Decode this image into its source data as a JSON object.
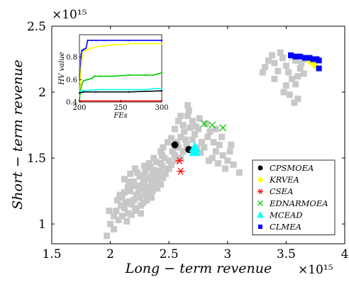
{
  "chart_data": {
    "type": "scatter",
    "xlabel": "Long − term revenue",
    "ylabel": "Short − term revenue",
    "x_exponent": "×10¹⁵",
    "y_exponent": "×10¹⁵",
    "xlim": [
      1.5,
      4
    ],
    "ylim": [
      0.85,
      2.5
    ],
    "xticks": [
      "1.5",
      "2",
      "2.5",
      "3",
      "3.5",
      "4"
    ],
    "yticks": [
      "1",
      "1.5",
      "2",
      "2.5"
    ],
    "legend_position": "bottom-right",
    "background_series": {
      "color": "#c8c8c8",
      "marker": "square",
      "points": [
        [
          1.97,
          0.91
        ],
        [
          2.0,
          1.0
        ],
        [
          2.03,
          0.96
        ],
        [
          2.07,
          1.03
        ],
        [
          2.1,
          1.06
        ],
        [
          2.05,
          1.1
        ],
        [
          2.12,
          1.12
        ],
        [
          2.15,
          1.08
        ],
        [
          2.18,
          1.15
        ],
        [
          2.2,
          1.18
        ],
        [
          2.1,
          1.2
        ],
        [
          2.13,
          1.16
        ],
        [
          2.22,
          1.22
        ],
        [
          2.25,
          1.2
        ],
        [
          2.27,
          1.26
        ],
        [
          2.3,
          1.22
        ],
        [
          2.17,
          1.25
        ],
        [
          2.24,
          1.29
        ],
        [
          2.28,
          1.31
        ],
        [
          2.33,
          1.28
        ],
        [
          2.35,
          1.33
        ],
        [
          2.32,
          1.35
        ],
        [
          2.38,
          1.3
        ],
        [
          2.4,
          1.36
        ],
        [
          2.36,
          1.38
        ],
        [
          2.42,
          1.4
        ],
        [
          2.45,
          1.35
        ],
        [
          2.48,
          1.42
        ],
        [
          2.3,
          1.4
        ],
        [
          2.27,
          1.37
        ],
        [
          2.2,
          1.32
        ],
        [
          2.15,
          1.28
        ],
        [
          2.25,
          1.36
        ],
        [
          2.34,
          1.43
        ],
        [
          2.43,
          1.46
        ],
        [
          2.5,
          1.48
        ],
        [
          2.46,
          1.5
        ],
        [
          2.52,
          1.45
        ],
        [
          2.39,
          1.47
        ],
        [
          2.55,
          1.52
        ],
        [
          2.53,
          1.55
        ],
        [
          2.58,
          1.58
        ],
        [
          2.5,
          1.42
        ],
        [
          2.41,
          1.32
        ],
        [
          2.36,
          1.25
        ],
        [
          2.31,
          1.18
        ],
        [
          2.26,
          1.14
        ],
        [
          2.22,
          1.1
        ],
        [
          2.18,
          1.07
        ],
        [
          2.14,
          1.02
        ],
        [
          2.09,
          1.14
        ],
        [
          2.06,
          1.18
        ],
        [
          2.12,
          1.24
        ],
        [
          2.19,
          1.29
        ],
        [
          2.29,
          1.32
        ],
        [
          2.37,
          1.41
        ],
        [
          2.44,
          1.44
        ],
        [
          2.47,
          1.38
        ],
        [
          2.4,
          1.27
        ],
        [
          2.33,
          1.22
        ],
        [
          2.28,
          1.16
        ],
        [
          2.21,
          1.12
        ],
        [
          2.16,
          1.17
        ],
        [
          2.24,
          1.24
        ],
        [
          2.31,
          1.26
        ],
        [
          2.38,
          1.34
        ],
        [
          2.43,
          1.3
        ],
        [
          2.35,
          1.2
        ],
        [
          2.26,
          1.08
        ],
        [
          2.03,
          1.06
        ],
        [
          1.99,
          1.1
        ],
        [
          2.08,
          1.22
        ],
        [
          2.16,
          1.32
        ],
        [
          2.23,
          1.39
        ],
        [
          2.44,
          1.52
        ],
        [
          2.56,
          1.48
        ],
        [
          2.6,
          1.5
        ],
        [
          2.62,
          1.55
        ],
        [
          2.65,
          1.6
        ],
        [
          2.57,
          1.62
        ],
        [
          2.6,
          1.66
        ],
        [
          2.63,
          1.7
        ],
        [
          2.68,
          1.73
        ],
        [
          2.7,
          1.78
        ],
        [
          2.66,
          1.82
        ],
        [
          2.72,
          1.68
        ],
        [
          2.75,
          1.72
        ],
        [
          2.78,
          1.62
        ],
        [
          2.8,
          1.58
        ],
        [
          2.83,
          1.66
        ],
        [
          2.85,
          1.7
        ],
        [
          2.88,
          1.62
        ],
        [
          2.9,
          1.55
        ],
        [
          2.93,
          1.6
        ],
        [
          2.87,
          1.5
        ],
        [
          2.92,
          1.46
        ],
        [
          2.96,
          1.52
        ],
        [
          3.0,
          1.48
        ],
        [
          3.02,
          1.55
        ],
        [
          2.98,
          1.42
        ],
        [
          3.05,
          1.45
        ],
        [
          3.03,
          1.6
        ],
        [
          2.95,
          1.66
        ],
        [
          2.9,
          1.72
        ],
        [
          2.82,
          1.76
        ],
        [
          2.76,
          1.8
        ],
        [
          2.73,
          1.74
        ],
        [
          2.7,
          1.64
        ],
        [
          2.74,
          1.58
        ],
        [
          2.77,
          1.54
        ],
        [
          3.1,
          1.39
        ],
        [
          2.84,
          1.48
        ],
        [
          2.64,
          1.64
        ],
        [
          2.62,
          1.75
        ],
        [
          2.66,
          1.9
        ],
        [
          2.6,
          1.82
        ],
        [
          2.67,
          1.86
        ],
        [
          2.55,
          1.72
        ],
        [
          2.58,
          1.78
        ],
        [
          2.69,
          1.56
        ],
        [
          2.52,
          1.65
        ],
        [
          2.45,
          1.58
        ],
        [
          2.49,
          1.62
        ],
        [
          2.43,
          1.55
        ],
        [
          2.37,
          1.5
        ],
        [
          2.33,
          1.46
        ],
        [
          2.29,
          1.44
        ],
        [
          2.21,
          1.42
        ],
        [
          2.17,
          1.38
        ],
        [
          2.12,
          1.34
        ],
        [
          3.3,
          2.15
        ],
        [
          3.32,
          2.19
        ],
        [
          3.35,
          2.24
        ],
        [
          3.38,
          2.28
        ],
        [
          3.4,
          2.22
        ],
        [
          3.45,
          2.3
        ],
        [
          3.47,
          2.26
        ],
        [
          3.5,
          2.2
        ],
        [
          3.52,
          2.15
        ],
        [
          3.55,
          2.1
        ],
        [
          3.58,
          2.06
        ],
        [
          3.6,
          2.12
        ],
        [
          3.62,
          2.18
        ],
        [
          3.65,
          2.14
        ],
        [
          3.5,
          2.05
        ],
        [
          3.48,
          2.0
        ],
        [
          3.53,
          1.98
        ],
        [
          3.6,
          1.95
        ],
        [
          3.57,
          1.92
        ],
        [
          3.4,
          2.1
        ],
        [
          3.63,
          2.22
        ],
        [
          3.68,
          2.25
        ],
        [
          3.55,
          2.27
        ],
        [
          3.43,
          2.16
        ],
        [
          3.58,
          2.24
        ]
      ]
    },
    "series": [
      {
        "name": "CPSMOEA",
        "color": "#000000",
        "marker": "circle",
        "points": [
          [
            2.55,
            1.6
          ],
          [
            2.67,
            1.565
          ]
        ]
      },
      {
        "name": "KRVEA",
        "color": "#ffff00",
        "marker": "diamond",
        "points": [
          [
            3.74,
            2.21
          ],
          [
            3.72,
            2.23
          ],
          [
            3.7,
            2.24
          ]
        ]
      },
      {
        "name": "CSEA",
        "color": "#ff0000",
        "marker": "asterisk",
        "points": [
          [
            2.59,
            1.48
          ],
          [
            2.6,
            1.4
          ]
        ]
      },
      {
        "name": "EDNARMOEA",
        "color": "#00cc00",
        "marker": "x",
        "points": [
          [
            2.8,
            1.76
          ],
          [
            2.87,
            1.75
          ],
          [
            2.96,
            1.73
          ]
        ]
      },
      {
        "name": "MCEAD",
        "color": "#00ffff",
        "marker": "triangle",
        "points": [
          [
            2.72,
            1.55
          ],
          [
            2.72,
            1.58
          ]
        ]
      },
      {
        "name": "CLMEA",
        "color": "#0000ff",
        "marker": "square",
        "points": [
          [
            3.54,
            2.28
          ],
          [
            3.58,
            2.27
          ],
          [
            3.62,
            2.27
          ],
          [
            3.66,
            2.26
          ],
          [
            3.7,
            2.26
          ],
          [
            3.73,
            2.25
          ],
          [
            3.76,
            2.25
          ],
          [
            3.78,
            2.24
          ],
          [
            3.78,
            2.18
          ]
        ]
      }
    ],
    "inset": {
      "xlabel": "FEs",
      "ylabel": "HV value",
      "xlim": [
        200,
        300
      ],
      "ylim": [
        0.4,
        1.0
      ],
      "xticks": [
        "200",
        "250",
        "300"
      ],
      "yticks": [
        "0.4",
        "0.6",
        "0.8"
      ],
      "series": [
        {
          "name": "CLMEA",
          "color": "#0000ff",
          "x": [
            200,
            201,
            202,
            203,
            204,
            205,
            206,
            208,
            210,
            215,
            220,
            230,
            260,
            300
          ],
          "y": [
            0.41,
            0.58,
            0.82,
            0.86,
            0.86,
            0.87,
            0.87,
            0.88,
            0.95,
            0.95,
            0.95,
            0.95,
            0.95,
            0.95
          ]
        },
        {
          "name": "KRVEA",
          "color": "#ffff00",
          "x": [
            200,
            201,
            202,
            203,
            205,
            207,
            210,
            215,
            220,
            225,
            230,
            240,
            250,
            260,
            270,
            300
          ],
          "y": [
            0.41,
            0.58,
            0.7,
            0.78,
            0.85,
            0.86,
            0.87,
            0.88,
            0.89,
            0.9,
            0.9,
            0.91,
            0.91,
            0.92,
            0.92,
            0.92
          ]
        },
        {
          "name": "EDNARMOEA",
          "color": "#00cc00",
          "x": [
            200,
            201,
            203,
            205,
            210,
            215,
            218,
            225,
            240,
            260,
            280,
            290,
            295,
            300
          ],
          "y": [
            0.41,
            0.5,
            0.56,
            0.59,
            0.6,
            0.61,
            0.63,
            0.63,
            0.63,
            0.64,
            0.64,
            0.64,
            0.65,
            0.66
          ]
        },
        {
          "name": "MCEAD",
          "color": "#00ffff",
          "x": [
            200,
            202,
            205,
            220,
            250,
            280,
            290,
            300
          ],
          "y": [
            0.48,
            0.5,
            0.5,
            0.51,
            0.51,
            0.51,
            0.52,
            0.52
          ]
        },
        {
          "name": "CPSMOEA",
          "color": "#000000",
          "x": [
            200,
            205,
            220,
            260,
            300
          ],
          "y": [
            0.48,
            0.49,
            0.49,
            0.49,
            0.5
          ]
        },
        {
          "name": "CSEA",
          "color": "#ff0000",
          "x": [
            200,
            250,
            300
          ],
          "y": [
            0.41,
            0.41,
            0.41
          ]
        }
      ]
    }
  }
}
